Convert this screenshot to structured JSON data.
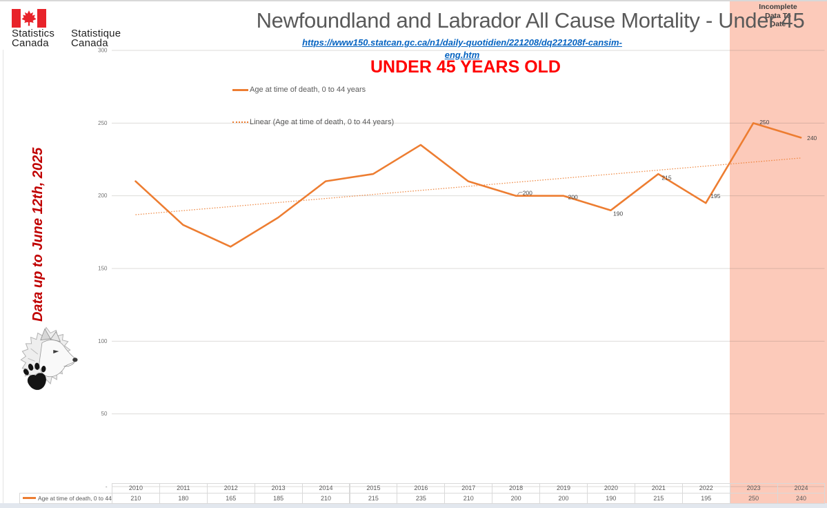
{
  "page": {
    "logo": {
      "flag_icon": "canada-flag",
      "en_line1": "Statistics",
      "en_line2": "Canada",
      "fr_line1": "Statistique",
      "fr_line2": "Canada"
    },
    "title": "Newfoundland and Labrador All Cause Mortality - Under 45",
    "source_link": "https://www150.statcan.gc.ca/n1/daily-quotidien/221208/dq221208f-cansim-eng.htm",
    "subtitle": "UNDER 45 YEARS OLD",
    "side_note": "Data up to June 12th, 2025",
    "incomplete_note_lines": [
      "Incomplete",
      "Data To",
      "Date"
    ]
  },
  "chart_data": {
    "type": "line",
    "title": "Newfoundland and Labrador All Cause Mortality - Under 45",
    "categories": [
      "2010",
      "2011",
      "2012",
      "2013",
      "2014",
      "2015",
      "2016",
      "2017",
      "2018",
      "2019",
      "2020",
      "2021",
      "2022",
      "2023",
      "2024"
    ],
    "series": [
      {
        "name": "Age at time of death, 0 to 44 years",
        "color": "#ED7D31",
        "values": [
          210,
          180,
          165,
          185,
          210,
          215,
          235,
          210,
          200,
          200,
          190,
          215,
          195,
          250,
          240
        ]
      }
    ],
    "trendline": {
      "name": "Linear (Age at time of death, 0 to 44 years)",
      "style": "dotted",
      "start_value": 187,
      "end_value": 226
    },
    "point_labels": [
      null,
      null,
      null,
      null,
      null,
      null,
      null,
      null,
      "200",
      "200",
      "190",
      "215",
      "195",
      "250",
      "240"
    ],
    "ylim": [
      0,
      300
    ],
    "yticks": [
      "300",
      "250",
      "200",
      "150",
      "100",
      "50",
      "-"
    ],
    "grid": true,
    "legend_position": "inside-top-left",
    "incomplete_region": {
      "from_category": "2023",
      "label": "Incomplete Data To Date"
    }
  },
  "table": {
    "row_label": "Age at time of death, 0 to 44 years",
    "columns": [
      "2010",
      "2011",
      "2012",
      "2013",
      "2014",
      "2015",
      "2016",
      "2017",
      "2018",
      "2019",
      "2020",
      "2021",
      "2022",
      "2023",
      "2024"
    ],
    "values": [
      "210",
      "180",
      "165",
      "185",
      "210",
      "215",
      "235",
      "210",
      "200",
      "200",
      "190",
      "215",
      "195",
      "250",
      "240"
    ]
  },
  "colors": {
    "series_orange": "#ED7D31",
    "incomplete_fill": "#FCCABA",
    "alert_red": "#FF0000",
    "note_red": "#C00000",
    "title_gray": "#595959",
    "link_blue": "#0563C1",
    "flag_red": "#E8232A",
    "grid_gray": "#D9D9D9",
    "tick_text": "#737373",
    "point_label_text": "#444444"
  }
}
